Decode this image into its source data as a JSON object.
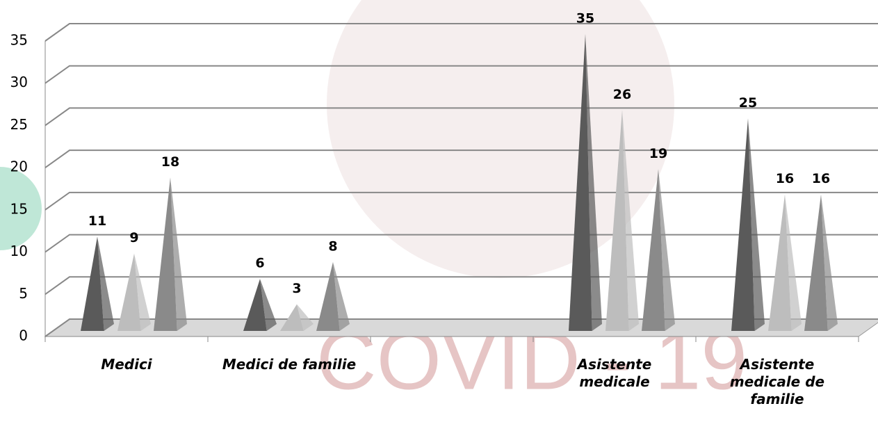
{
  "chart_data": {
    "type": "pyramid3d",
    "watermark": "COVID - 19",
    "categories": [
      "Medici",
      "Medici de familie",
      null,
      "Asistente medicale",
      "Asistente medicale de familie"
    ],
    "series": [
      {
        "color": "#5a5a5a",
        "values": [
          11,
          6,
          null,
          35,
          25
        ]
      },
      {
        "color": "#bdbdbd",
        "values": [
          9,
          3,
          null,
          26,
          16
        ]
      },
      {
        "color": "#8a8a8a",
        "values": [
          18,
          8,
          null,
          19,
          16
        ]
      }
    ],
    "ylim": [
      0,
      35
    ],
    "yticks": [
      0,
      5,
      10,
      15,
      20,
      25,
      30,
      35
    ],
    "grid": true
  }
}
